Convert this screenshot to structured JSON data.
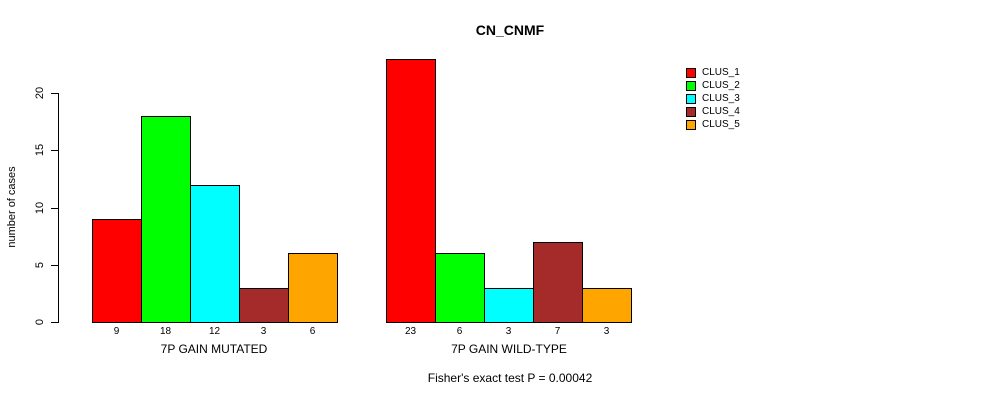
{
  "chart_data": {
    "type": "bar",
    "title": "CN_CNMF",
    "ylabel": "number of cases",
    "xlabel": "",
    "ylim": [
      0,
      20
    ],
    "yticks": [
      0,
      5,
      10,
      15,
      20
    ],
    "grid": false,
    "legend_position": "right",
    "clusters": [
      {
        "name": "CLUS_1",
        "color": "#FF0000"
      },
      {
        "name": "CLUS_2",
        "color": "#00FF00"
      },
      {
        "name": "CLUS_3",
        "color": "#00FFFF"
      },
      {
        "name": "CLUS_4",
        "color": "#A52A2A"
      },
      {
        "name": "CLUS_5",
        "color": "#FFA500"
      }
    ],
    "categories": [
      "CLUS_1",
      "CLUS_2",
      "CLUS_3",
      "CLUS_4",
      "CLUS_5"
    ],
    "groups": [
      {
        "label": "7P GAIN MUTATED",
        "values": [
          9,
          18,
          12,
          3,
          6
        ]
      },
      {
        "label": "7P GAIN WILD-TYPE",
        "values": [
          23,
          6,
          3,
          7,
          3
        ]
      }
    ],
    "bar_value_labels_shown": true,
    "annotation": "Fisher's exact test P = 0.00042"
  }
}
